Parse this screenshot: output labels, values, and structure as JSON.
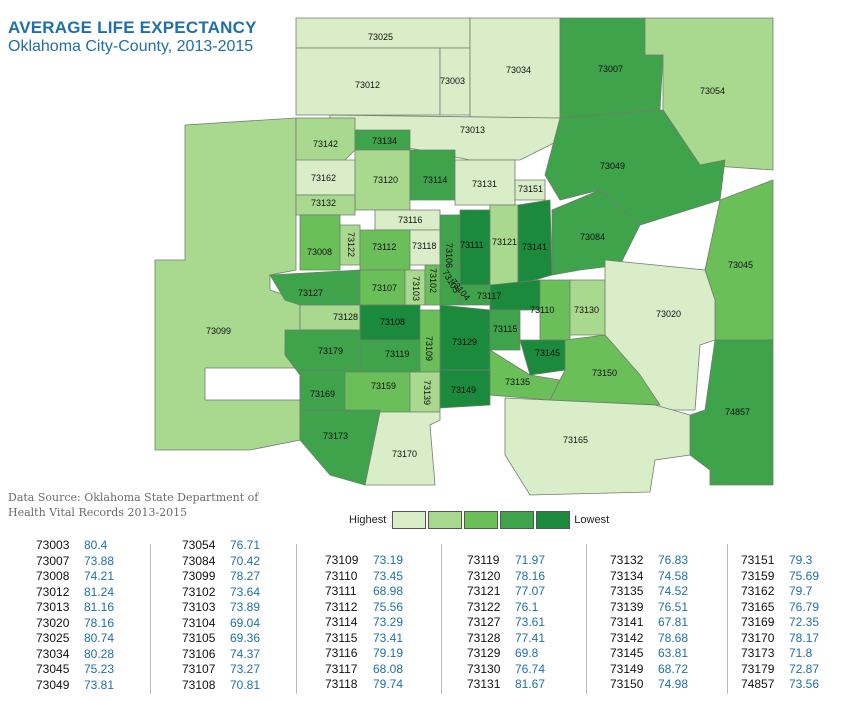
{
  "header": {
    "title": "AVERAGE LIFE EXPECTANCY",
    "subtitle": "Oklahoma City-County, 2013-2015"
  },
  "source": "Data Source: Oklahoma State Department of Health Vital Records 2013-2015",
  "legend": {
    "high_label": "Highest",
    "low_label": "Lowest",
    "colors": [
      "#d9edc8",
      "#a9d98f",
      "#6bbf59",
      "#3ea34a",
      "#1b8a3c"
    ]
  },
  "zip_labels": [
    "73025",
    "73012",
    "73003",
    "73034",
    "73007",
    "73054",
    "73013",
    "73142",
    "73134",
    "73049",
    "73162",
    "73120",
    "73114",
    "73131",
    "73151",
    "73132",
    "73116",
    "73008",
    "73122",
    "73112",
    "73118",
    "73106",
    "73111",
    "73121",
    "73141",
    "73084",
    "73045",
    "73127",
    "73107",
    "73103",
    "73102",
    "73105",
    "73104",
    "73117",
    "73110",
    "73130",
    "73020",
    "73099",
    "73128",
    "73108",
    "73179",
    "73119",
    "73109",
    "73129",
    "73115",
    "73145",
    "73169",
    "73159",
    "73139",
    "73149",
    "73135",
    "73150",
    "74857",
    "73173",
    "73165",
    "73170"
  ],
  "table": [
    [
      {
        "zip": "73003",
        "value": "80.4"
      },
      {
        "zip": "73007",
        "value": "73.88"
      },
      {
        "zip": "73008",
        "value": "74.21"
      },
      {
        "zip": "73012",
        "value": "81.24"
      },
      {
        "zip": "73013",
        "value": "81.16"
      },
      {
        "zip": "73020",
        "value": "78.16"
      },
      {
        "zip": "73025",
        "value": "80.74"
      },
      {
        "zip": "73034",
        "value": "80.28"
      },
      {
        "zip": "73045",
        "value": "75.23"
      },
      {
        "zip": "73049",
        "value": "73.81"
      }
    ],
    [
      {
        "zip": "73054",
        "value": "76.71"
      },
      {
        "zip": "73084",
        "value": "70.42"
      },
      {
        "zip": "73099",
        "value": "78.27"
      },
      {
        "zip": "73102",
        "value": "73.64"
      },
      {
        "zip": "73103",
        "value": "73.89"
      },
      {
        "zip": "73104",
        "value": "69.04"
      },
      {
        "zip": "73105",
        "value": "69.36"
      },
      {
        "zip": "73106",
        "value": "74.37"
      },
      {
        "zip": "73107",
        "value": "73.27"
      },
      {
        "zip": "73108",
        "value": "70.81"
      }
    ],
    [
      {
        "zip": "73109",
        "value": "73.19"
      },
      {
        "zip": "73110",
        "value": "73.45"
      },
      {
        "zip": "73111",
        "value": "68.98"
      },
      {
        "zip": "73112",
        "value": "75.56"
      },
      {
        "zip": "73114",
        "value": "73.29"
      },
      {
        "zip": "73115",
        "value": "73.41"
      },
      {
        "zip": "73116",
        "value": "79.19"
      },
      {
        "zip": "73117",
        "value": "68.08"
      },
      {
        "zip": "73118",
        "value": "79.74"
      }
    ],
    [
      {
        "zip": "73119",
        "value": "71.97"
      },
      {
        "zip": "73120",
        "value": "78.16"
      },
      {
        "zip": "73121",
        "value": "77.07"
      },
      {
        "zip": "73122",
        "value": "76.1"
      },
      {
        "zip": "73127",
        "value": "73.61"
      },
      {
        "zip": "73128",
        "value": "77.41"
      },
      {
        "zip": "73129",
        "value": "69.8"
      },
      {
        "zip": "73130",
        "value": "76.74"
      },
      {
        "zip": "73131",
        "value": "81.67"
      }
    ],
    [
      {
        "zip": "73132",
        "value": "76.83"
      },
      {
        "zip": "73134",
        "value": "74.58"
      },
      {
        "zip": "73135",
        "value": "74.52"
      },
      {
        "zip": "73139",
        "value": "76.51"
      },
      {
        "zip": "73141",
        "value": "67.81"
      },
      {
        "zip": "73142",
        "value": "78.68"
      },
      {
        "zip": "73145",
        "value": "63.81"
      },
      {
        "zip": "73149",
        "value": "68.72"
      },
      {
        "zip": "73150",
        "value": "74.98"
      }
    ],
    [
      {
        "zip": "73151",
        "value": "79.3"
      },
      {
        "zip": "73159",
        "value": "75.69"
      },
      {
        "zip": "73162",
        "value": "79.7"
      },
      {
        "zip": "73165",
        "value": "76.79"
      },
      {
        "zip": "73169",
        "value": "72.35"
      },
      {
        "zip": "73170",
        "value": "78.17"
      },
      {
        "zip": "73173",
        "value": "71.8"
      },
      {
        "zip": "73179",
        "value": "72.87"
      },
      {
        "zip": "74857",
        "value": "73.56"
      }
    ]
  ]
}
